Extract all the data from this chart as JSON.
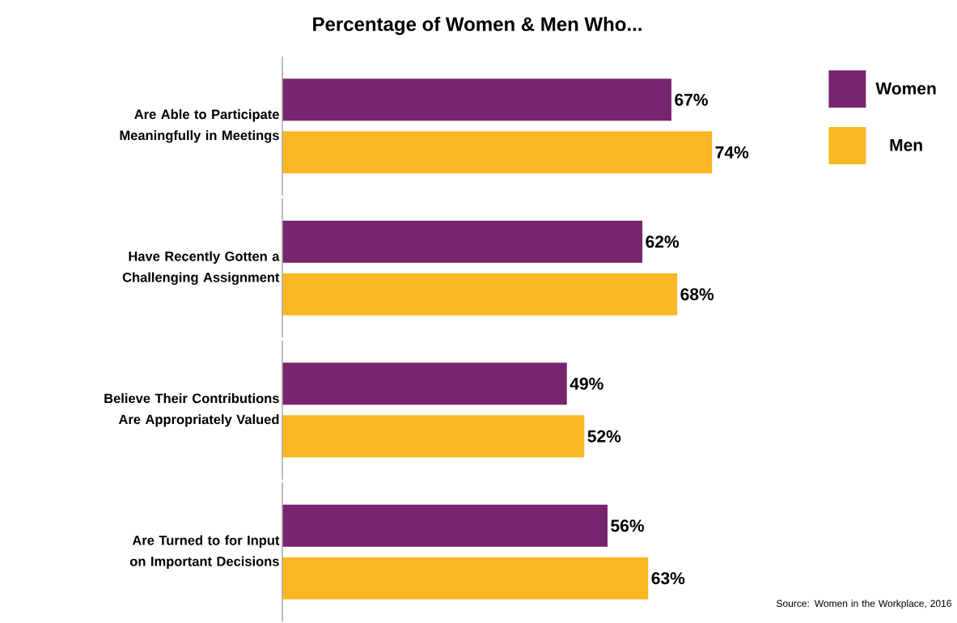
{
  "chart_data": {
    "type": "bar",
    "orientation": "horizontal",
    "title": "Percentage of Women & Men Who...",
    "categories": [
      "Are Able to Participate Meaningfully in Meetings",
      "Have Recently Gotten a Challenging Assignment",
      "Believe Their Contributions Are Appropriately Valued",
      "Are Turned to for Input on Important Decisions"
    ],
    "series": [
      {
        "name": "Women",
        "color": "#78256f",
        "values": [
          67,
          62,
          49,
          56
        ],
        "value_labels": [
          "67%",
          "62%",
          "49%",
          "56%"
        ]
      },
      {
        "name": "Men",
        "color": "#fbb624",
        "values": [
          74,
          68,
          52,
          63
        ],
        "value_labels": [
          "74%",
          "68%",
          "52%",
          "63%"
        ]
      }
    ],
    "legend": "top right",
    "annotations": [
      "Source: Women in the Workplace, 2016"
    ]
  }
}
